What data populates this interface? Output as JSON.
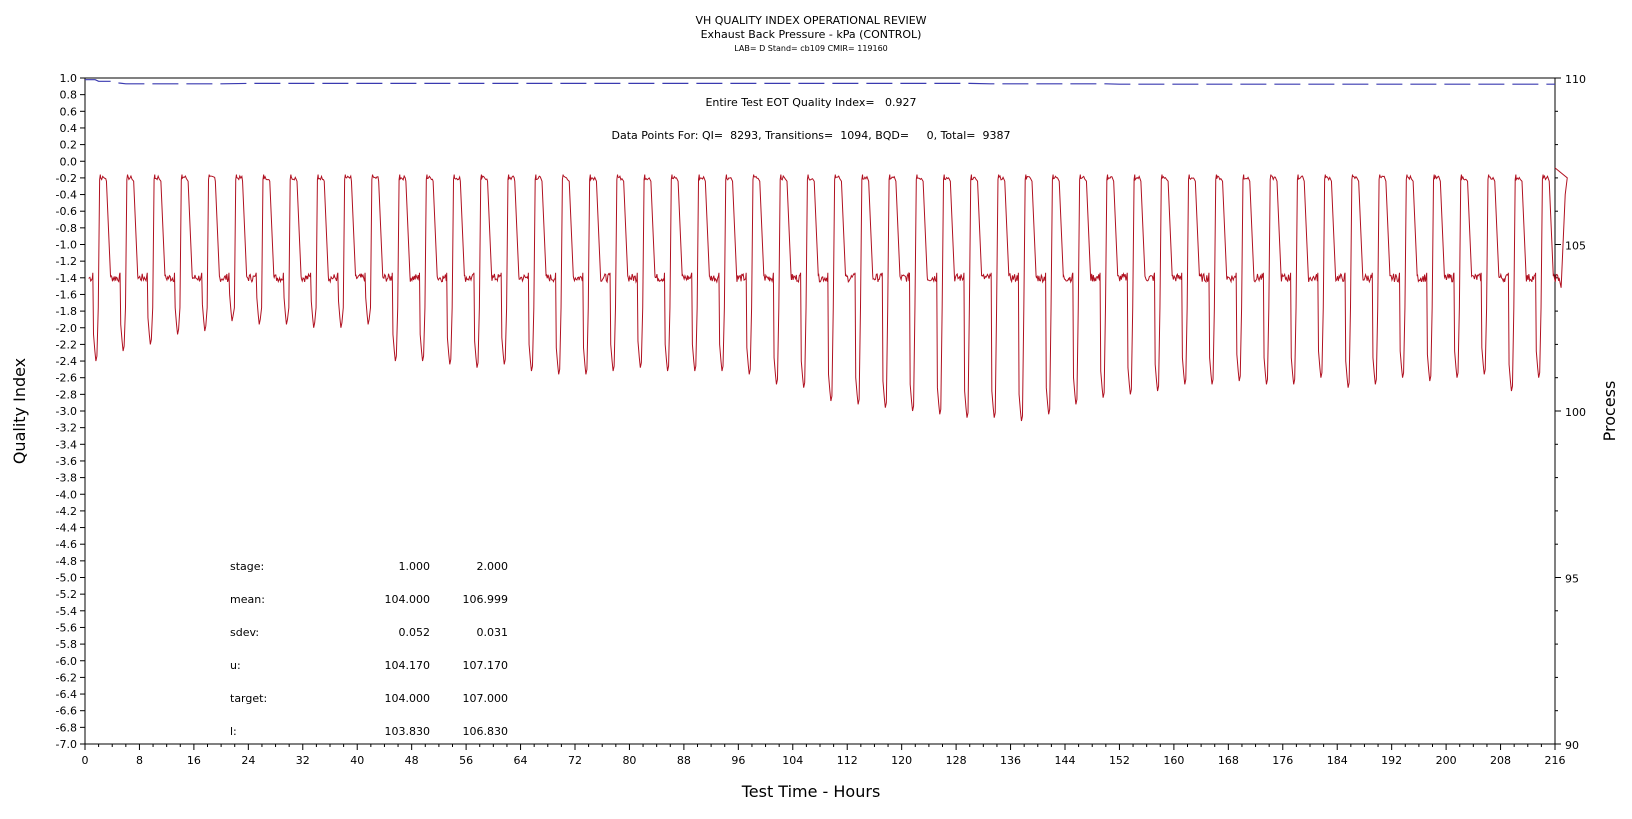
{
  "chart_data": {
    "type": "line",
    "title": "VH QUALITY INDEX OPERATIONAL REVIEW",
    "subtitle": "Exhaust Back Pressure - kPa (CONTROL)",
    "subtitle2": "LAB= D Stand= cb109 CMIR= 119160",
    "xlabel": "Test Time - Hours",
    "ylabel_left": "Quality Index",
    "ylabel_right": "Process",
    "xlim": [
      0,
      216
    ],
    "ylim_left": [
      -7.0,
      1.0
    ],
    "ylim_right": [
      90,
      110
    ],
    "x_ticks": [
      "0",
      "8",
      "16",
      "24",
      "32",
      "40",
      "48",
      "56",
      "64",
      "72",
      "80",
      "88",
      "96",
      "104",
      "112",
      "120",
      "128",
      "136",
      "144",
      "152",
      "160",
      "168",
      "176",
      "184",
      "192",
      "200",
      "208",
      "216"
    ],
    "x_tick_values": [
      0,
      8,
      16,
      24,
      32,
      40,
      48,
      56,
      64,
      72,
      80,
      88,
      96,
      104,
      112,
      120,
      128,
      136,
      144,
      152,
      160,
      168,
      176,
      184,
      192,
      200,
      208,
      216
    ],
    "y_left_ticks": [
      "1.0",
      "0.8",
      "0.6",
      "0.4",
      "0.2",
      "0.0",
      "-0.2",
      "-0.4",
      "-0.6",
      "-0.8",
      "-1.0",
      "-1.2",
      "-1.4",
      "-1.6",
      "-1.8",
      "-2.0",
      "-2.2",
      "-2.4",
      "-2.6",
      "-2.8",
      "-3.0",
      "-3.2",
      "-3.4",
      "-3.6",
      "-3.8",
      "-4.0",
      "-4.2",
      "-4.4",
      "-4.6",
      "-4.8",
      "-5.0",
      "-5.2",
      "-5.4",
      "-5.6",
      "-5.8",
      "-6.0",
      "-6.2",
      "-6.4",
      "-6.6",
      "-6.8",
      "-7.0"
    ],
    "y_right_ticks": [
      "110",
      "105",
      "100",
      "95",
      "90"
    ],
    "annotations": {
      "eot_quality_index": "Entire Test EOT Quality Index=   0.927",
      "data_points": "Data Points For: QI=  8293, Transitions=  1094, BQD=     0, Total=  9387"
    },
    "stats": {
      "header": [
        "",
        "1.000",
        "2.000"
      ],
      "rows": [
        {
          "label": "stage:",
          "v1": "1.000",
          "v2": "2.000"
        },
        {
          "label": "mean:",
          "v1": "104.000",
          "v2": "106.999"
        },
        {
          "label": "sdev:",
          "v1": "0.052",
          "v2": "0.031"
        },
        {
          "label": "u:",
          "v1": "104.170",
          "v2": "107.170"
        },
        {
          "label": "target:",
          "v1": "104.000",
          "v2": "107.000"
        },
        {
          "label": "l:",
          "v1": "103.830",
          "v2": "106.830"
        }
      ]
    },
    "series": [
      {
        "axis": "left",
        "color": "#3a3ab0",
        "style": "dashed",
        "points": [
          [
            0,
            0.98
          ],
          [
            1.5,
            0.98
          ],
          [
            2,
            0.96
          ],
          [
            4,
            0.96
          ],
          [
            5,
            0.94
          ],
          [
            6,
            0.93
          ],
          [
            20,
            0.93
          ],
          [
            24,
            0.935
          ],
          [
            40,
            0.935
          ],
          [
            72,
            0.935
          ],
          [
            120,
            0.935
          ],
          [
            130,
            0.935
          ],
          [
            133,
            0.93
          ],
          [
            150,
            0.93
          ],
          [
            152,
            0.925
          ],
          [
            216,
            0.925
          ]
        ]
      },
      {
        "axis": "right",
        "color": "#b01020",
        "style": "solid",
        "cycle_start": 0.6,
        "cycle_period": 4.0,
        "baseline": 104.0,
        "high": 107.0,
        "lows": [
          101.5,
          101.8,
          102.0,
          102.3,
          102.4,
          102.7,
          102.6,
          102.6,
          102.5,
          102.5,
          102.6,
          101.5,
          101.5,
          101.4,
          101.3,
          101.4,
          101.2,
          101.1,
          101.1,
          101.2,
          101.3,
          101.2,
          101.2,
          101.2,
          101.1,
          100.8,
          100.7,
          100.3,
          100.2,
          100.1,
          100.0,
          99.9,
          99.8,
          99.8,
          99.7,
          99.9,
          100.2,
          100.4,
          100.5,
          100.6,
          100.8,
          100.8,
          100.9,
          100.8,
          100.8,
          101.0,
          100.7,
          100.8,
          101.0,
          100.9,
          101.0,
          101.1,
          100.6,
          101.0
        ],
        "end_value": 107.3
      }
    ]
  }
}
